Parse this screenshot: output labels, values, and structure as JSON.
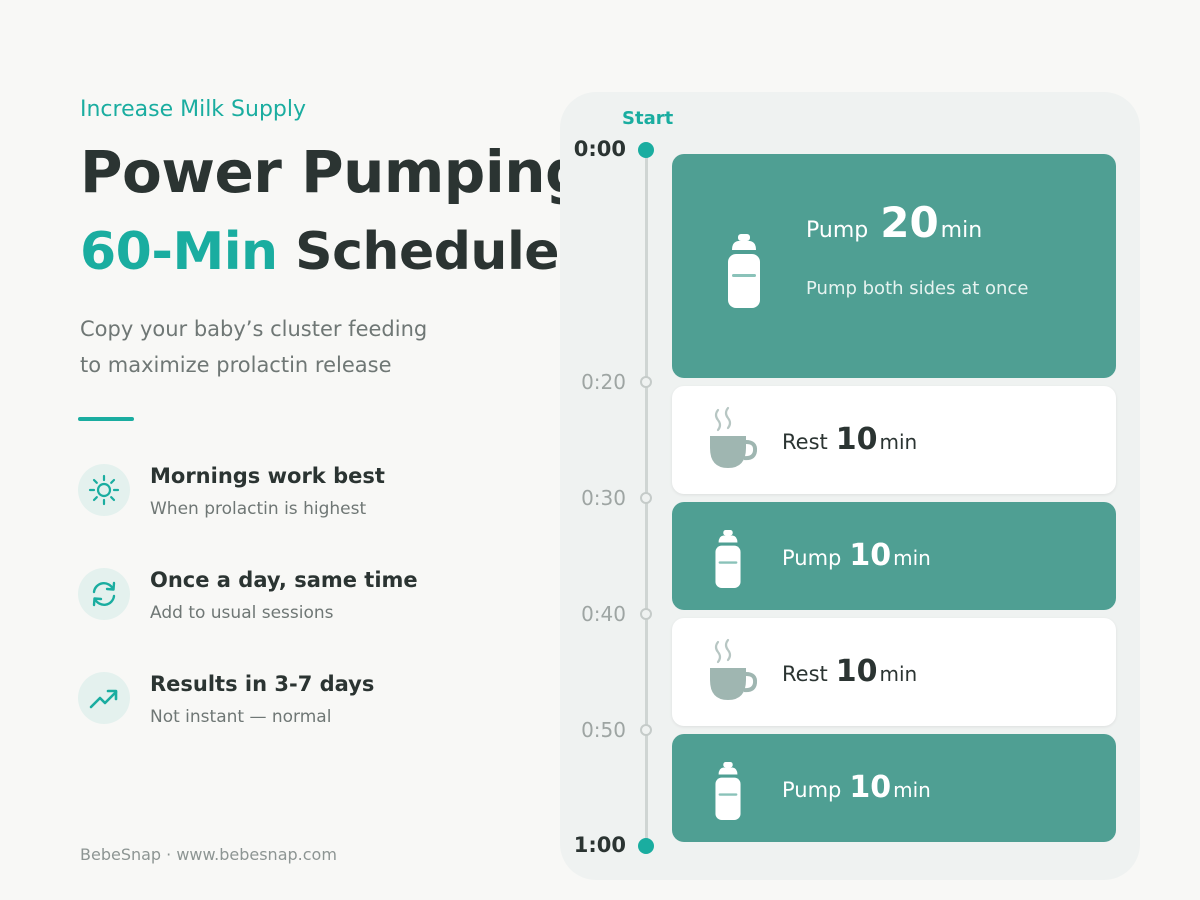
{
  "header": {
    "eyebrow": "Increase Milk Supply",
    "title_line1": "Power Pumping",
    "title_accent": "60-Min",
    "title_rest": " Schedule",
    "subtitle_line1": "Copy your baby’s cluster feeding",
    "subtitle_line2": "to maximize prolactin release"
  },
  "tips": [
    {
      "icon": "sun-icon",
      "title": "Mornings work best",
      "desc": "When prolactin is highest"
    },
    {
      "icon": "repeat-icon",
      "title": "Once a day, same time",
      "desc": "Add to usual sessions"
    },
    {
      "icon": "trending-up-icon",
      "title": "Results in 3-7 days",
      "desc": "Not instant — normal"
    }
  ],
  "footer": "BebeSnap · www.bebesnap.com",
  "timeline": {
    "start_label": "Start",
    "marks": [
      "0:00",
      "0:20",
      "0:30",
      "0:40",
      "0:50",
      "1:00"
    ]
  },
  "schedule": [
    {
      "activity": "Pump",
      "minutes": "20",
      "unit": "min",
      "note": "Pump both sides at once",
      "icon": "bottle-icon"
    },
    {
      "activity": "Rest",
      "minutes": "10",
      "unit": "min",
      "icon": "coffee-cup-icon"
    },
    {
      "activity": "Pump",
      "minutes": "10",
      "unit": "min",
      "icon": "bottle-icon"
    },
    {
      "activity": "Rest",
      "minutes": "10",
      "unit": "min",
      "icon": "coffee-cup-icon"
    },
    {
      "activity": "Pump",
      "minutes": "10",
      "unit": "min",
      "icon": "bottle-icon"
    }
  ],
  "colors": {
    "accent": "#1aada0",
    "pump_block": "#4f9f93",
    "rest_cup": "#9fb6b1"
  }
}
